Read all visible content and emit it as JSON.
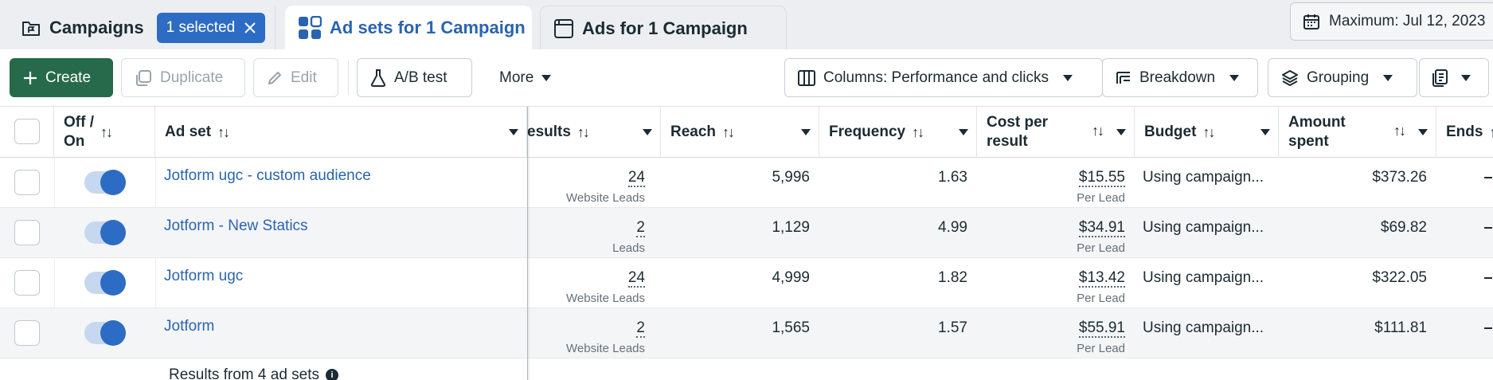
{
  "tabs": {
    "campaigns_label": "Campaigns",
    "selected_chip": "1 selected",
    "adsets_label": "Ad sets for 1 Campaign",
    "ads_label": "Ads for 1 Campaign"
  },
  "date_range": "Maximum: Jul 12, 2023",
  "toolbar": {
    "create": "Create",
    "duplicate": "Duplicate",
    "edit": "Edit",
    "ab_test": "A/B test",
    "more": "More",
    "columns": "Columns: Performance and clicks",
    "breakdown": "Breakdown",
    "grouping": "Grouping"
  },
  "columns": {
    "off_on_line1": "Off /",
    "off_on_line2": "On",
    "ad_set": "Ad set",
    "results": "esults",
    "reach": "Reach",
    "frequency": "Frequency",
    "cost_line1": "Cost per",
    "cost_line2": "result",
    "budget": "Budget",
    "amount_line1": "Amount",
    "amount_line2": "spent",
    "ends": "Ends"
  },
  "sort_glyph": "↑↓",
  "rows": [
    {
      "name": "Jotform ugc - custom audience",
      "results": "24",
      "results_type": "Website Leads",
      "reach": "5,996",
      "frequency": "1.63",
      "cost": "$15.55",
      "cost_type": "Per Lead",
      "budget": "Using campaign...",
      "amount": "$373.26",
      "on": true
    },
    {
      "name": "Jotform - New Statics",
      "results": "2",
      "results_type": "Leads",
      "reach": "1,129",
      "frequency": "4.99",
      "cost": "$34.91",
      "cost_type": "Per Lead",
      "budget": "Using campaign...",
      "amount": "$69.82",
      "on": true
    },
    {
      "name": "Jotform ugc",
      "results": "24",
      "results_type": "Website Leads",
      "reach": "4,999",
      "frequency": "1.82",
      "cost": "$13.42",
      "cost_type": "Per Lead",
      "budget": "Using campaign...",
      "amount": "$322.05",
      "on": true
    },
    {
      "name": "Jotform",
      "results": "2",
      "results_type": "Website Leads",
      "reach": "1,565",
      "frequency": "1.57",
      "cost": "$55.91",
      "cost_type": "Per Lead",
      "budget": "Using campaign...",
      "amount": "$111.81",
      "on": true
    }
  ],
  "footer": {
    "results_summary": "Results from 4 ad sets",
    "info_icon": "i"
  },
  "colors": {
    "accent_blue": "#2d6cc4",
    "create_green": "#266a4b",
    "link_blue": "#2a64b1"
  },
  "icons": {
    "campaigns": "folder-flag-icon",
    "adsets": "grid-icon",
    "ads": "ad-page-icon",
    "calendar": "calendar-icon",
    "columns": "columns-icon",
    "breakdown": "breakdown-icon",
    "grouping": "layers-icon",
    "reports": "reports-icon"
  }
}
